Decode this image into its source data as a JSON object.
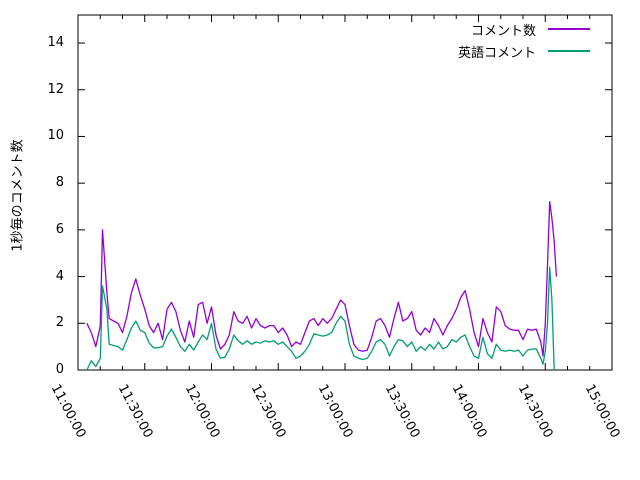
{
  "chart_data": {
    "type": "line",
    "title": "",
    "xlabel": "",
    "ylabel": "1秒毎のコメント数",
    "x_ticks": [
      "11:00:00",
      "11:30:00",
      "12:00:00",
      "12:30:00",
      "13:00:00",
      "13:30:00",
      "14:00:00",
      "14:30:00",
      "15:00:00"
    ],
    "y_ticks": [
      "0",
      "2",
      "4",
      "6",
      "8",
      "10",
      "12",
      "14"
    ],
    "xlim_minutes": [
      660,
      900
    ],
    "ylim": [
      0,
      15.2
    ],
    "x_major_step_minutes": 30,
    "x_minor_step_minutes": 10,
    "grid": false,
    "legend_position": "top-right-inside",
    "background": "#ffffff",
    "axis_color": "#000000",
    "series": [
      {
        "name": "コメント数",
        "color": "#9400D3",
        "points": [
          [
            "11:04",
            2.0
          ],
          [
            "11:06",
            1.6
          ],
          [
            "11:08",
            1.0
          ],
          [
            "11:10",
            1.9
          ],
          [
            "11:11",
            6.0
          ],
          [
            "11:13",
            3.3
          ],
          [
            "11:14",
            2.2
          ],
          [
            "11:16",
            2.1
          ],
          [
            "11:18",
            2.0
          ],
          [
            "11:20",
            1.6
          ],
          [
            "11:22",
            2.3
          ],
          [
            "11:24",
            3.3
          ],
          [
            "11:26",
            3.9
          ],
          [
            "11:28",
            3.2
          ],
          [
            "11:30",
            2.6
          ],
          [
            "11:32",
            1.9
          ],
          [
            "11:34",
            1.6
          ],
          [
            "11:36",
            2.0
          ],
          [
            "11:38",
            1.3
          ],
          [
            "11:40",
            2.6
          ],
          [
            "11:42",
            2.9
          ],
          [
            "11:44",
            2.5
          ],
          [
            "11:46",
            1.7
          ],
          [
            "11:48",
            1.2
          ],
          [
            "11:50",
            2.1
          ],
          [
            "11:52",
            1.4
          ],
          [
            "11:54",
            2.8
          ],
          [
            "11:56",
            2.9
          ],
          [
            "11:58",
            2.0
          ],
          [
            "12:00",
            2.7
          ],
          [
            "12:02",
            1.5
          ],
          [
            "12:04",
            0.9
          ],
          [
            "12:06",
            1.1
          ],
          [
            "12:08",
            1.5
          ],
          [
            "12:10",
            2.5
          ],
          [
            "12:12",
            2.1
          ],
          [
            "12:14",
            2.0
          ],
          [
            "12:16",
            2.3
          ],
          [
            "12:18",
            1.8
          ],
          [
            "12:20",
            2.2
          ],
          [
            "12:22",
            1.9
          ],
          [
            "12:24",
            1.8
          ],
          [
            "12:26",
            1.9
          ],
          [
            "12:28",
            1.9
          ],
          [
            "12:30",
            1.6
          ],
          [
            "12:32",
            1.8
          ],
          [
            "12:34",
            1.5
          ],
          [
            "12:36",
            1.0
          ],
          [
            "12:38",
            1.2
          ],
          [
            "12:40",
            1.1
          ],
          [
            "12:42",
            1.6
          ],
          [
            "12:44",
            2.1
          ],
          [
            "12:46",
            2.2
          ],
          [
            "12:48",
            1.9
          ],
          [
            "12:50",
            2.2
          ],
          [
            "12:52",
            2.0
          ],
          [
            "12:54",
            2.2
          ],
          [
            "12:56",
            2.6
          ],
          [
            "12:58",
            3.0
          ],
          [
            "13:00",
            2.8
          ],
          [
            "13:02",
            1.9
          ],
          [
            "13:04",
            1.1
          ],
          [
            "13:06",
            0.85
          ],
          [
            "13:08",
            0.8
          ],
          [
            "13:10",
            0.85
          ],
          [
            "13:12",
            1.4
          ],
          [
            "13:14",
            2.1
          ],
          [
            "13:16",
            2.2
          ],
          [
            "13:18",
            1.9
          ],
          [
            "13:20",
            1.4
          ],
          [
            "13:22",
            2.2
          ],
          [
            "13:24",
            2.9
          ],
          [
            "13:26",
            2.1
          ],
          [
            "13:28",
            2.2
          ],
          [
            "13:30",
            2.5
          ],
          [
            "13:32",
            1.7
          ],
          [
            "13:34",
            1.5
          ],
          [
            "13:36",
            1.8
          ],
          [
            "13:38",
            1.6
          ],
          [
            "13:40",
            2.2
          ],
          [
            "13:42",
            1.9
          ],
          [
            "13:44",
            1.5
          ],
          [
            "13:46",
            1.9
          ],
          [
            "13:48",
            2.2
          ],
          [
            "13:50",
            2.6
          ],
          [
            "13:52",
            3.1
          ],
          [
            "13:54",
            3.4
          ],
          [
            "13:56",
            2.6
          ],
          [
            "13:58",
            1.6
          ],
          [
            "14:00",
            1.0
          ],
          [
            "14:02",
            2.2
          ],
          [
            "14:04",
            1.6
          ],
          [
            "14:06",
            1.2
          ],
          [
            "14:08",
            2.7
          ],
          [
            "14:10",
            2.5
          ],
          [
            "14:12",
            1.9
          ],
          [
            "14:14",
            1.75
          ],
          [
            "14:16",
            1.7
          ],
          [
            "14:18",
            1.7
          ],
          [
            "14:20",
            1.3
          ],
          [
            "14:22",
            1.75
          ],
          [
            "14:24",
            1.7
          ],
          [
            "14:26",
            1.75
          ],
          [
            "14:28",
            1.2
          ],
          [
            "14:29",
            0.6
          ],
          [
            "14:30",
            2.0
          ],
          [
            "14:31",
            4.5
          ],
          [
            "14:32",
            7.2
          ],
          [
            "14:33",
            6.5
          ],
          [
            "14:34",
            5.5
          ],
          [
            "14:35",
            4.0
          ]
        ]
      },
      {
        "name": "英語コメント",
        "color": "#009E73",
        "points": [
          [
            "11:04",
            0.0
          ],
          [
            "11:06",
            0.4
          ],
          [
            "11:08",
            0.15
          ],
          [
            "11:10",
            0.5
          ],
          [
            "11:11",
            3.6
          ],
          [
            "11:13",
            2.6
          ],
          [
            "11:14",
            1.1
          ],
          [
            "11:16",
            1.05
          ],
          [
            "11:18",
            1.0
          ],
          [
            "11:20",
            0.85
          ],
          [
            "11:22",
            1.3
          ],
          [
            "11:24",
            1.8
          ],
          [
            "11:26",
            2.1
          ],
          [
            "11:28",
            1.7
          ],
          [
            "11:30",
            1.6
          ],
          [
            "11:32",
            1.15
          ],
          [
            "11:34",
            0.95
          ],
          [
            "11:36",
            0.95
          ],
          [
            "11:38",
            1.0
          ],
          [
            "11:40",
            1.45
          ],
          [
            "11:42",
            1.75
          ],
          [
            "11:44",
            1.4
          ],
          [
            "11:46",
            1.0
          ],
          [
            "11:48",
            0.8
          ],
          [
            "11:50",
            1.1
          ],
          [
            "11:52",
            0.85
          ],
          [
            "11:54",
            1.2
          ],
          [
            "11:56",
            1.5
          ],
          [
            "11:58",
            1.3
          ],
          [
            "12:00",
            2.0
          ],
          [
            "12:02",
            0.9
          ],
          [
            "12:04",
            0.5
          ],
          [
            "12:06",
            0.55
          ],
          [
            "12:08",
            0.9
          ],
          [
            "12:10",
            1.5
          ],
          [
            "12:12",
            1.25
          ],
          [
            "12:14",
            1.1
          ],
          [
            "12:16",
            1.25
          ],
          [
            "12:18",
            1.1
          ],
          [
            "12:20",
            1.2
          ],
          [
            "12:22",
            1.15
          ],
          [
            "12:24",
            1.25
          ],
          [
            "12:26",
            1.2
          ],
          [
            "12:28",
            1.25
          ],
          [
            "12:30",
            1.1
          ],
          [
            "12:32",
            1.2
          ],
          [
            "12:34",
            1.0
          ],
          [
            "12:36",
            0.8
          ],
          [
            "12:38",
            0.5
          ],
          [
            "12:40",
            0.6
          ],
          [
            "12:42",
            0.8
          ],
          [
            "12:44",
            1.1
          ],
          [
            "12:46",
            1.55
          ],
          [
            "12:48",
            1.5
          ],
          [
            "12:50",
            1.45
          ],
          [
            "12:52",
            1.5
          ],
          [
            "12:54",
            1.6
          ],
          [
            "12:56",
            2.0
          ],
          [
            "12:58",
            2.3
          ],
          [
            "13:00",
            2.1
          ],
          [
            "13:02",
            1.1
          ],
          [
            "13:04",
            0.6
          ],
          [
            "13:06",
            0.5
          ],
          [
            "13:08",
            0.45
          ],
          [
            "13:10",
            0.5
          ],
          [
            "13:12",
            0.8
          ],
          [
            "13:14",
            1.2
          ],
          [
            "13:16",
            1.3
          ],
          [
            "13:18",
            1.1
          ],
          [
            "13:20",
            0.6
          ],
          [
            "13:22",
            1.0
          ],
          [
            "13:24",
            1.3
          ],
          [
            "13:26",
            1.25
          ],
          [
            "13:28",
            1.0
          ],
          [
            "13:30",
            1.2
          ],
          [
            "13:32",
            0.8
          ],
          [
            "13:34",
            1.0
          ],
          [
            "13:36",
            0.85
          ],
          [
            "13:38",
            1.1
          ],
          [
            "13:40",
            0.9
          ],
          [
            "13:42",
            1.2
          ],
          [
            "13:44",
            0.9
          ],
          [
            "13:46",
            1.0
          ],
          [
            "13:48",
            1.3
          ],
          [
            "13:50",
            1.2
          ],
          [
            "13:52",
            1.4
          ],
          [
            "13:54",
            1.5
          ],
          [
            "13:56",
            1.0
          ],
          [
            "13:58",
            0.6
          ],
          [
            "14:00",
            0.5
          ],
          [
            "14:02",
            1.4
          ],
          [
            "14:04",
            0.7
          ],
          [
            "14:06",
            0.5
          ],
          [
            "14:08",
            1.1
          ],
          [
            "14:10",
            0.85
          ],
          [
            "14:12",
            0.8
          ],
          [
            "14:14",
            0.85
          ],
          [
            "14:16",
            0.8
          ],
          [
            "14:18",
            0.85
          ],
          [
            "14:20",
            0.6
          ],
          [
            "14:22",
            0.85
          ],
          [
            "14:24",
            0.9
          ],
          [
            "14:26",
            0.9
          ],
          [
            "14:28",
            0.5
          ],
          [
            "14:29",
            0.25
          ],
          [
            "14:30",
            0.8
          ],
          [
            "14:31",
            2.0
          ],
          [
            "14:32",
            4.4
          ],
          [
            "14:33",
            3.0
          ],
          [
            "14:34",
            0.0
          ],
          [
            "14:35",
            null
          ]
        ]
      }
    ]
  }
}
